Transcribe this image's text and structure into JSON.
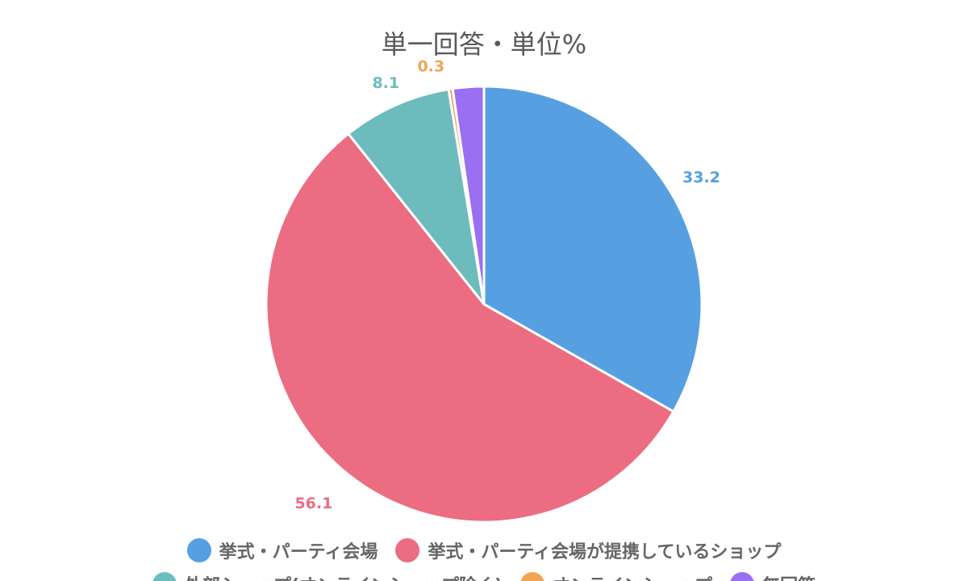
{
  "chart_data": {
    "type": "pie",
    "title": "",
    "subtitle": "単一回答・単位%",
    "series": [
      {
        "name": "挙式・パーティ会場",
        "value": 33.2,
        "color": "#56a0e2"
      },
      {
        "name": "挙式・パーティ会場が提携しているショップ",
        "value": 56.1,
        "color": "#ec6d82"
      },
      {
        "name": "外部ショップ(オンラインショップ除く)",
        "value": 8.1,
        "color": "#6dbcbd"
      },
      {
        "name": "オンラインショップ",
        "value": 0.3,
        "color": "#f0a456"
      },
      {
        "name": "無回答",
        "value": 2.3,
        "color": "#9b6ff2"
      }
    ],
    "data_labels": [
      "33.2",
      "56.1",
      "8.1",
      "0.3",
      ""
    ],
    "legend_position": "bottom",
    "start_angle": "12 o'clock",
    "direction": "clockwise"
  }
}
